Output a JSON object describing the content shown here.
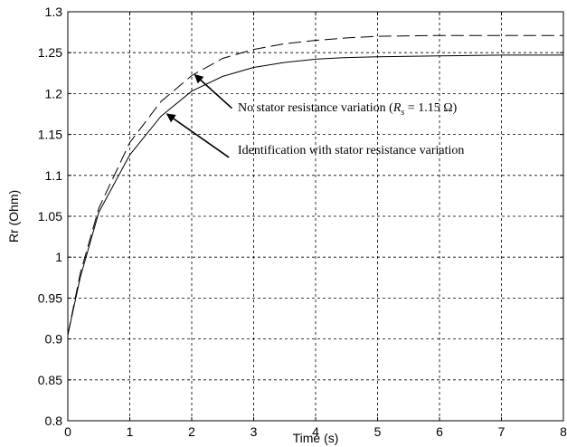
{
  "chart_data": {
    "type": "line",
    "title": "",
    "xlabel": "Time (s)",
    "ylabel": "Rr (Ohm)",
    "xlim": [
      0,
      8
    ],
    "ylim": [
      0.8,
      1.3
    ],
    "xticks": [
      "0",
      "1",
      "2",
      "3",
      "4",
      "5",
      "6",
      "7",
      "8"
    ],
    "yticks": [
      "0.8",
      "0.85",
      "0.9",
      "0.95",
      "1",
      "1.05",
      "1.1",
      "1.15",
      "1.2",
      "1.25",
      "1.3"
    ],
    "grid": true,
    "series": [
      {
        "style": "dashed",
        "x": [
          0,
          0.2,
          0.5,
          1.0,
          1.5,
          2.0,
          2.5,
          3.0,
          3.5,
          4.0,
          4.5,
          5.0,
          6.0,
          7.0,
          8.0
        ],
        "y": [
          0.905,
          0.98,
          1.06,
          1.14,
          1.19,
          1.222,
          1.243,
          1.254,
          1.261,
          1.265,
          1.268,
          1.27,
          1.271,
          1.271,
          1.271
        ]
      },
      {
        "style": "solid",
        "x": [
          0,
          0.2,
          0.5,
          1.0,
          1.5,
          2.0,
          2.5,
          3.0,
          3.5,
          4.0,
          4.5,
          5.0,
          6.0,
          7.0,
          8.0
        ],
        "y": [
          0.905,
          0.975,
          1.055,
          1.125,
          1.172,
          1.203,
          1.221,
          1.232,
          1.238,
          1.242,
          1.244,
          1.245,
          1.246,
          1.247,
          1.247
        ]
      }
    ],
    "annotations": [
      {
        "id": "no-variation",
        "text_prefix": "No stator resistance variation (",
        "text_var": "R",
        "text_sub": "s",
        "text_suffix": " = 1.15 Ω)",
        "arrow_from": [
          2.65,
          1.182
        ],
        "arrow_to": [
          2.05,
          1.223
        ]
      },
      {
        "id": "with-variation",
        "text": "Identification with stator resistance variation",
        "arrow_from": [
          2.6,
          1.122
        ],
        "arrow_to": [
          1.6,
          1.175
        ]
      }
    ]
  }
}
